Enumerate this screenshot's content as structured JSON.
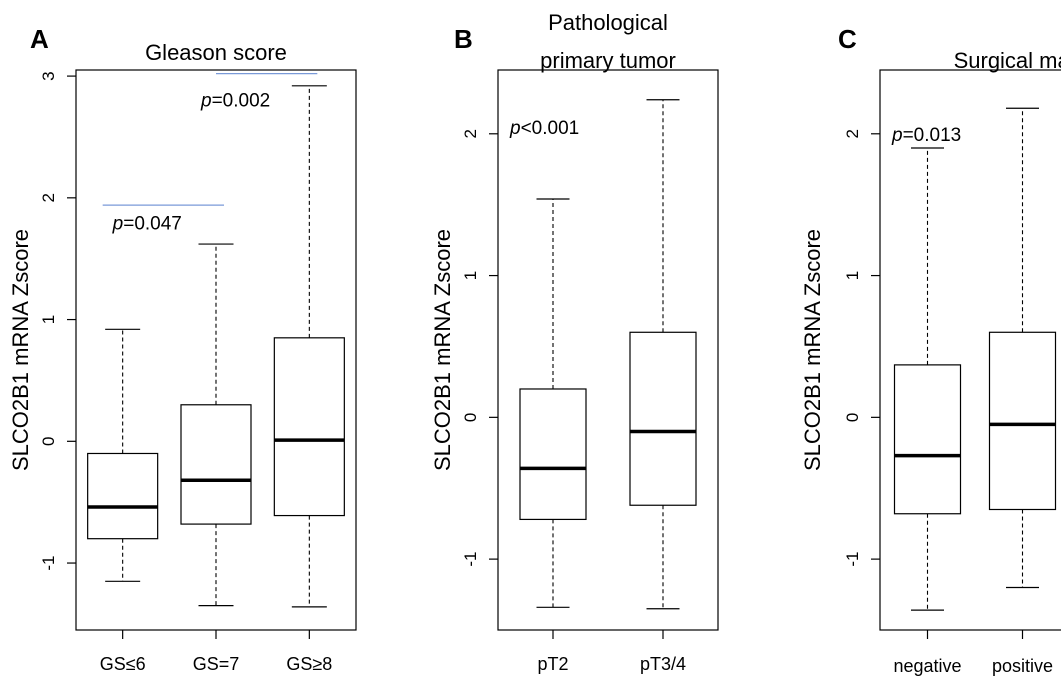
{
  "figure": {
    "panels": [
      "A",
      "B",
      "C"
    ]
  },
  "chart_data": [
    {
      "type": "box",
      "panel": "A",
      "title": "Gleason score",
      "title_lines": [
        "Gleason score"
      ],
      "ylabel": "SLCO2B1 mRNA Zscore",
      "ylim": [
        -1.55,
        3.05
      ],
      "yticks": [
        -1,
        0,
        1,
        2,
        3
      ],
      "categories": [
        "GS≤6",
        "GS=7",
        "GS≥8"
      ],
      "boxes": [
        {
          "category": "GS≤6",
          "whisker_low": -1.15,
          "q1": -0.8,
          "median": -0.54,
          "q3": -0.1,
          "whisker_high": 0.92
        },
        {
          "category": "GS=7",
          "whisker_low": -1.35,
          "q1": -0.68,
          "median": -0.32,
          "q3": 0.3,
          "whisker_high": 1.62
        },
        {
          "category": "GS≥8",
          "whisker_low": -1.36,
          "q1": -0.61,
          "median": 0.01,
          "q3": 0.85,
          "whisker_high": 2.92
        }
      ],
      "annotations": [
        {
          "p_label": "p",
          "value_text": "=0.047",
          "from": 0,
          "to": 1,
          "line_y": 1.94,
          "text_y": 1.74
        },
        {
          "p_label": "p",
          "value_text": "=0.002",
          "from": 1,
          "to": 2,
          "line_y": 3.02,
          "text_y": 2.75
        }
      ]
    },
    {
      "type": "box",
      "panel": "B",
      "title": "Pathological primary tumor",
      "title_lines": [
        "Pathological",
        "primary tumor"
      ],
      "ylabel": "SLCO2B1 mRNA Zscore",
      "ylim": [
        -1.5,
        2.45
      ],
      "yticks": [
        -1,
        0,
        1,
        2
      ],
      "categories": [
        "pT2",
        "pT3/4"
      ],
      "boxes": [
        {
          "category": "pT2",
          "whisker_low": -1.34,
          "q1": -0.72,
          "median": -0.36,
          "q3": 0.2,
          "whisker_high": 1.54
        },
        {
          "category": "pT3/4",
          "whisker_low": -1.35,
          "q1": -0.62,
          "median": -0.1,
          "q3": 0.6,
          "whisker_high": 2.24
        }
      ],
      "annotations": [
        {
          "p_label": "p",
          "value_text": "<0.001",
          "text_y": 2.0
        }
      ]
    },
    {
      "type": "box",
      "panel": "C",
      "title": "Surgical margin",
      "title_lines": [
        "Surgical margin"
      ],
      "ylabel": "SLCO2B1 mRNA Zscore",
      "ylim": [
        -1.5,
        2.45
      ],
      "yticks": [
        -1,
        0,
        1,
        2
      ],
      "categories": [
        "negative",
        "positive"
      ],
      "boxes": [
        {
          "category": "negative",
          "whisker_low": -1.36,
          "q1": -0.68,
          "median": -0.27,
          "q3": 0.37,
          "whisker_high": 1.9
        },
        {
          "category": "positive",
          "whisker_low": -1.2,
          "q1": -0.65,
          "median": -0.05,
          "q3": 0.6,
          "whisker_high": 2.18
        }
      ],
      "annotations": [
        {
          "p_label": "p",
          "value_text": "=0.013",
          "text_y": 1.95
        }
      ]
    }
  ]
}
